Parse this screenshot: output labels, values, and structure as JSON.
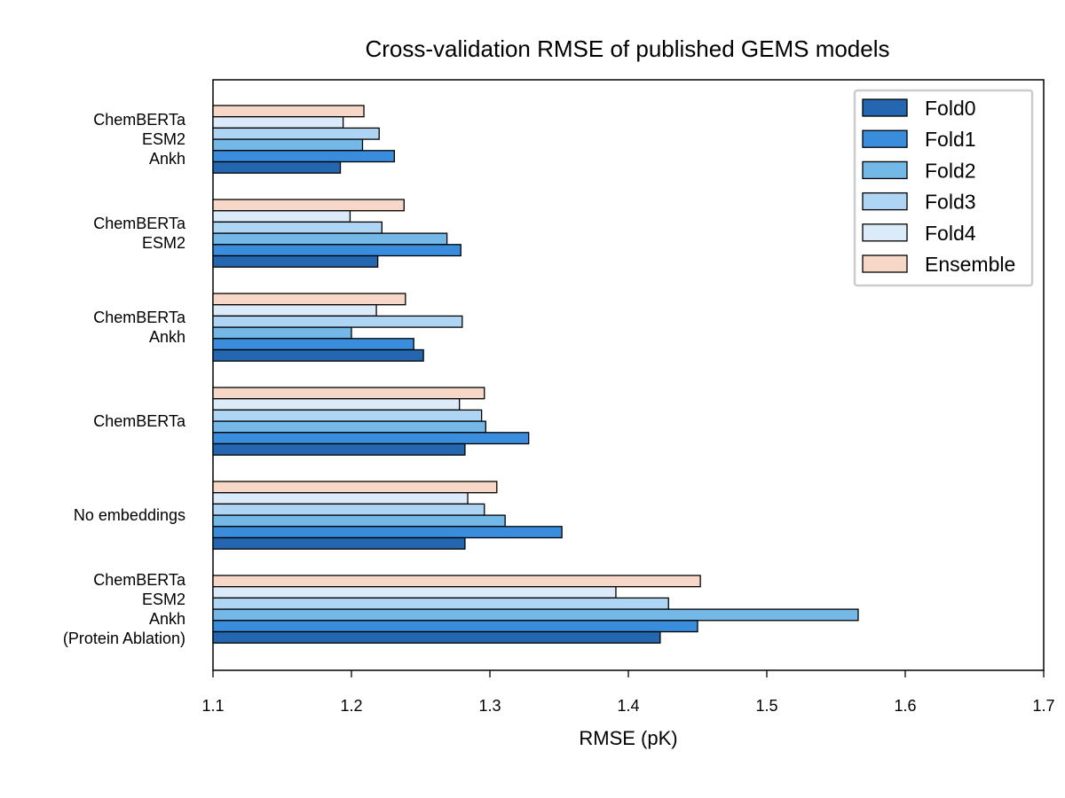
{
  "chart_data": {
    "type": "bar",
    "orientation": "horizontal",
    "title": "Cross-validation RMSE of published GEMS models",
    "xlabel": "RMSE (pK)",
    "ylabel": "",
    "xlim": [
      1.1,
      1.7
    ],
    "xticks": [
      "1.1",
      "1.2",
      "1.3",
      "1.4",
      "1.5",
      "1.6",
      "1.7"
    ],
    "grid": false,
    "legend_position": "top-right",
    "categories": [
      {
        "lines": [
          "ChemBERTa",
          "ESM2",
          "Ankh"
        ]
      },
      {
        "lines": [
          "ChemBERTa",
          "ESM2"
        ]
      },
      {
        "lines": [
          "ChemBERTa",
          "Ankh"
        ]
      },
      {
        "lines": [
          "ChemBERTa"
        ]
      },
      {
        "lines": [
          "No embeddings"
        ]
      },
      {
        "lines": [
          "ChemBERTa",
          "ESM2",
          "Ankh",
          "(Protein Ablation)"
        ]
      }
    ],
    "series": [
      {
        "name": "Ensemble",
        "color": "#F7D8C8",
        "values": [
          1.209,
          1.238,
          1.239,
          1.296,
          1.305,
          1.452
        ]
      },
      {
        "name": "Fold4",
        "color": "#DCEBFA",
        "values": [
          1.194,
          1.199,
          1.218,
          1.278,
          1.284,
          1.391
        ]
      },
      {
        "name": "Fold3",
        "color": "#AED6F4",
        "values": [
          1.22,
          1.222,
          1.28,
          1.294,
          1.296,
          1.429
        ]
      },
      {
        "name": "Fold2",
        "color": "#74B8E8",
        "values": [
          1.208,
          1.269,
          1.2,
          1.297,
          1.311,
          1.566
        ]
      },
      {
        "name": "Fold1",
        "color": "#3A8DDD",
        "values": [
          1.231,
          1.279,
          1.245,
          1.328,
          1.352,
          1.45
        ]
      },
      {
        "name": "Fold0",
        "color": "#2467B0",
        "values": [
          1.192,
          1.219,
          1.252,
          1.282,
          1.282,
          1.423
        ]
      }
    ]
  }
}
